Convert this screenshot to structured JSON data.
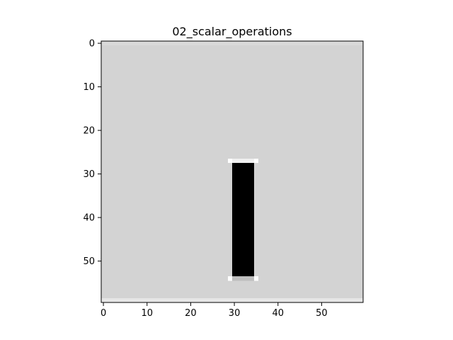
{
  "chart_data": {
    "type": "heatmap",
    "title": "02_scalar_operations",
    "xlabel": "",
    "ylabel": "",
    "colormap": "gray",
    "grid": false,
    "image_shape": [
      60,
      60
    ],
    "xlim": [
      -0.5,
      59.5
    ],
    "ylim": [
      59.5,
      -0.5
    ],
    "y_inverted": true,
    "x_ticks": [
      0,
      10,
      20,
      30,
      40,
      50
    ],
    "y_ticks": [
      0,
      10,
      20,
      30,
      40,
      50
    ],
    "background": {
      "value": 0.83,
      "color": "#d3d3d3"
    },
    "regions": [
      {
        "name": "border-top-row",
        "rows": [
          0,
          0
        ],
        "cols": [
          0,
          59
        ],
        "value": 0.85,
        "color": "#d9d9d9"
      },
      {
        "name": "border-bottom-row",
        "rows": [
          59,
          59
        ],
        "cols": [
          0,
          59
        ],
        "value": 0.9,
        "color": "#e6e6e6"
      },
      {
        "name": "bar-top-cap",
        "rows": [
          27,
          27
        ],
        "cols": [
          29,
          35
        ],
        "value": 0.94,
        "color": "#f0f0f0"
      },
      {
        "name": "bar-top-cap-left",
        "rows": [
          27,
          27
        ],
        "cols": [
          29,
          29
        ],
        "value": 1.0,
        "color": "#ffffff"
      },
      {
        "name": "bar-top-cap-right",
        "rows": [
          27,
          27
        ],
        "cols": [
          35,
          35
        ],
        "value": 1.0,
        "color": "#ffffff"
      },
      {
        "name": "bar-body",
        "rows": [
          28,
          53
        ],
        "cols": [
          30,
          34
        ],
        "value": 0.0,
        "color": "#000000"
      },
      {
        "name": "bar-bottom-cap",
        "rows": [
          54,
          54
        ],
        "cols": [
          29,
          35
        ],
        "value": 0.75,
        "color": "#bfbfbf"
      },
      {
        "name": "bar-bottom-cap-left",
        "rows": [
          54,
          54
        ],
        "cols": [
          29,
          29
        ],
        "value": 1.0,
        "color": "#ffffff"
      },
      {
        "name": "bar-bottom-cap-right",
        "rows": [
          54,
          54
        ],
        "cols": [
          35,
          35
        ],
        "value": 1.0,
        "color": "#ffffff"
      }
    ]
  }
}
